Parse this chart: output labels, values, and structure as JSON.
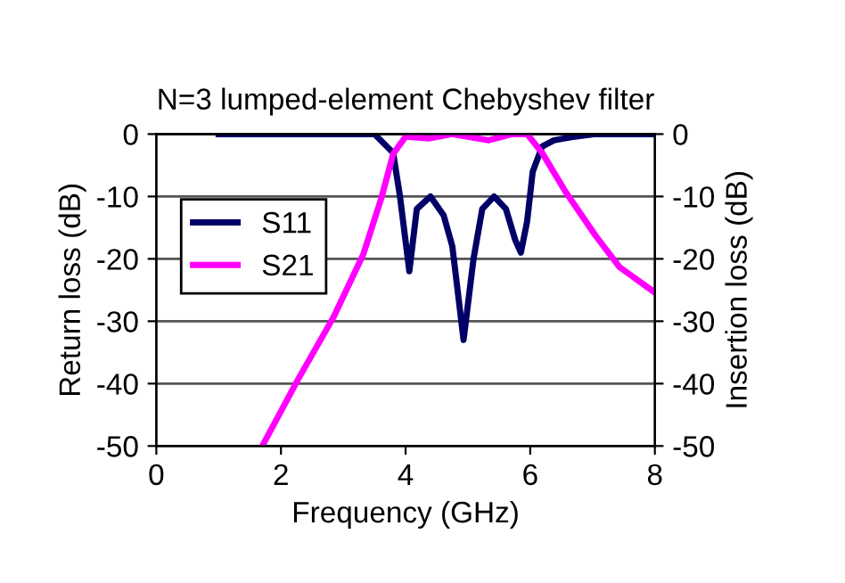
{
  "chart_data": {
    "type": "line",
    "title": "N=3 lumped-element Chebyshev filter",
    "xlabel": "Frequency (GHz)",
    "ylabel": "Return loss (dB)",
    "y2label": "Insertion loss (dB)",
    "xlim": [
      0,
      8
    ],
    "xticks": [
      0,
      2,
      4,
      6,
      8
    ],
    "ylim": [
      -50,
      0
    ],
    "yticks": [
      -50,
      -40,
      -30,
      -20,
      -10,
      0
    ],
    "y2lim": [
      -50,
      0
    ],
    "y2ticks": [
      -50,
      -40,
      -30,
      -20,
      -10,
      0
    ],
    "grid": "y",
    "legend": "left",
    "marker": "none",
    "line_style": "solid",
    "series": [
      {
        "name": "S11",
        "color": "#000066",
        "x": [
          1.0,
          3.5,
          3.8,
          3.91,
          4.06,
          4.18,
          4.4,
          4.61,
          4.75,
          4.93,
          5.09,
          5.23,
          5.42,
          5.61,
          5.76,
          5.85,
          5.95,
          6.04,
          6.19,
          6.38,
          6.66,
          7.05,
          8.0
        ],
        "values": [
          0,
          0,
          -3,
          -10,
          -22,
          -12,
          -10,
          -13,
          -18,
          -33,
          -20,
          -12,
          -10,
          -12,
          -17,
          -19,
          -14,
          -6,
          -2,
          -1,
          -0.5,
          0,
          0
        ]
      },
      {
        "name": "S21",
        "color": "#ff00ff",
        "axis": "y2",
        "x": [
          1.7,
          2.27,
          2.84,
          3.32,
          3.61,
          3.8,
          4.0,
          4.37,
          4.75,
          5.33,
          5.71,
          5.95,
          6.19,
          6.57,
          7.05,
          7.43,
          8.0
        ],
        "values": [
          -50,
          -39.4,
          -29.4,
          -19.3,
          -10.3,
          -3.2,
          -0.4,
          -0.7,
          0,
          -1,
          0,
          0,
          -3,
          -9.3,
          -16.3,
          -21.3,
          -25.4
        ]
      }
    ]
  }
}
